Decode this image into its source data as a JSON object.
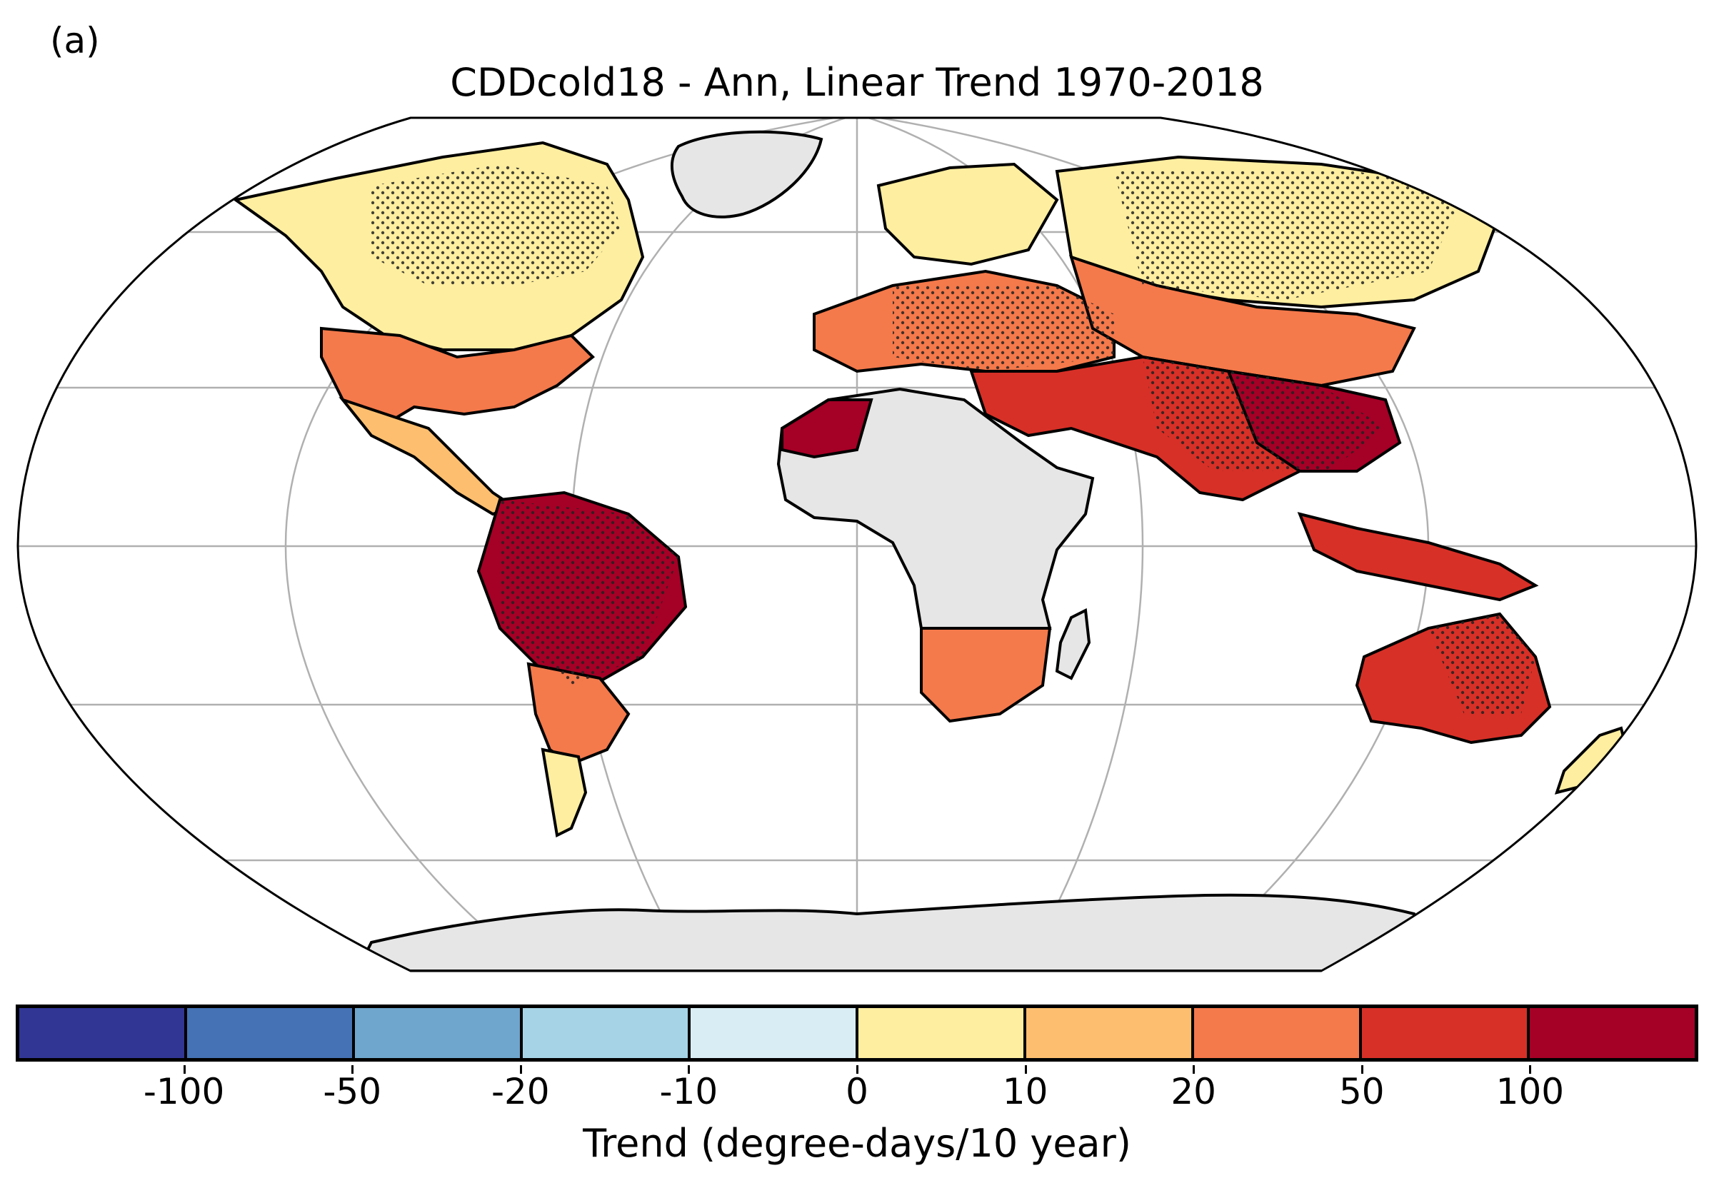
{
  "panel_label": "(a)",
  "map": {
    "title": "CDDcold18 - Ann, Linear Trend 1970-2018",
    "projection": "Robinson",
    "land_color_no_data": "#e6e6e6",
    "ocean_color": "#ffffff",
    "graticule_color": "#b0b0b0",
    "stipple_meaning": "stippling over significant trends"
  },
  "colorbar": {
    "title": "Trend (degree-days/10 year)",
    "colors": [
      "#313695",
      "#4472b4",
      "#6ea6cd",
      "#a6d4e6",
      "#d8eef4",
      "#feeea0",
      "#fdbf6f",
      "#f4794b",
      "#d73027",
      "#a50026"
    ],
    "tick_labels": [
      "-100",
      "-50",
      "-20",
      "-10",
      "0",
      "10",
      "20",
      "50",
      "100"
    ]
  }
}
